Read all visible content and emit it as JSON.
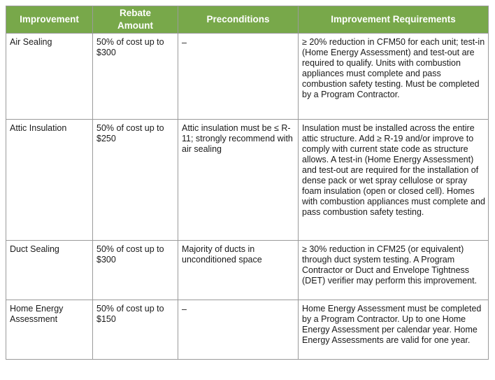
{
  "table": {
    "headers": {
      "improvement": "Improvement",
      "rebate_line1": "Rebate",
      "rebate_line2": "Amount",
      "preconditions": "Preconditions",
      "requirements": "Improvement Requirements"
    },
    "rows": [
      {
        "improvement": "Air Sealing",
        "rebate": "50% of cost up to $300",
        "preconditions": "–",
        "requirements": "≥ 20% reduction in CFM50 for each unit; test-in (Home Energy Assessment) and test-out are required to qualify. Units with combustion appliances must complete and pass combustion safety testing. Must be completed by a Program Contractor."
      },
      {
        "improvement": "Attic Insulation",
        "rebate": "50% of cost up to $250",
        "preconditions": "Attic insulation must be ≤ R-11; strongly recommend with air sealing",
        "requirements": "Insulation must be installed across the entire attic structure. Add ≥ R-19 and/or improve to comply with current state code as structure allows. A test-in (Home Energy Assessment) and test-out are required for the installation of dense pack or wet spray cellulose or spray foam insulation (open or closed cell). Homes with combustion appliances must complete and pass combustion safety testing."
      },
      {
        "improvement": "Duct Sealing",
        "rebate": "50% of cost up to $300",
        "preconditions": "Majority of ducts in unconditioned space",
        "requirements": "≥ 30% reduction in CFM25 (or equivalent) through duct system testing. A Program Contractor or Duct and Envelope Tightness (DET) verifier may perform this improvement."
      },
      {
        "improvement": "Home Energy Assessment",
        "rebate": "50% of cost up to $150",
        "preconditions": "–",
        "requirements": "Home Energy Assessment must be completed by a Program Contractor. Up to one Home Energy Assessment per calendar year. Home Energy Assessments are valid for one year."
      }
    ]
  }
}
